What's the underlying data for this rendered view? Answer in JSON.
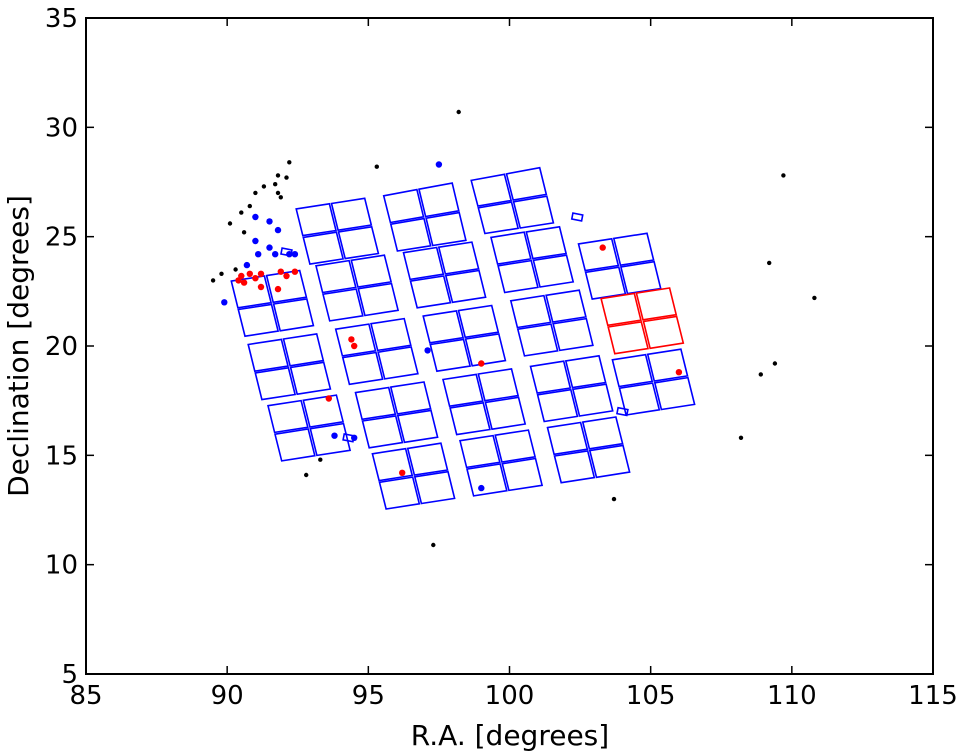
{
  "chart_data": {
    "type": "scatter",
    "title": "",
    "xlabel": "R.A. [degrees]",
    "ylabel": "Declination [degrees]",
    "xlim": [
      85,
      115
    ],
    "ylim": [
      5,
      35
    ],
    "xticks": [
      "85",
      "90",
      "95",
      "100",
      "105",
      "110",
      "115"
    ],
    "yticks": [
      "5",
      "10",
      "15",
      "20",
      "25",
      "30",
      "35"
    ],
    "grid": false,
    "legend": "none",
    "colors": {
      "blue": "#0000ff",
      "red": "#ff0000",
      "black": "#000000"
    },
    "fields": [
      {
        "color": "blue",
        "corners": [
          [
            92.4,
            26.3
          ],
          [
            94.9,
            26.8
          ],
          [
            95.4,
            24.2
          ],
          [
            92.9,
            23.7
          ]
        ]
      },
      {
        "color": "blue",
        "corners": [
          [
            95.5,
            26.9
          ],
          [
            98.0,
            27.5
          ],
          [
            98.5,
            24.8
          ],
          [
            96.0,
            24.3
          ]
        ]
      },
      {
        "color": "blue",
        "corners": [
          [
            98.6,
            27.6
          ],
          [
            101.1,
            28.2
          ],
          [
            101.6,
            25.6
          ],
          [
            99.1,
            25.1
          ]
        ]
      },
      {
        "color": "blue",
        "corners": [
          [
            90.1,
            23.0
          ],
          [
            92.6,
            23.5
          ],
          [
            93.1,
            20.9
          ],
          [
            90.6,
            20.4
          ]
        ]
      },
      {
        "color": "blue",
        "corners": [
          [
            93.1,
            23.7
          ],
          [
            95.6,
            24.2
          ],
          [
            96.1,
            21.6
          ],
          [
            93.6,
            21.1
          ]
        ]
      },
      {
        "color": "blue",
        "corners": [
          [
            96.2,
            24.3
          ],
          [
            98.7,
            24.8
          ],
          [
            99.2,
            22.2
          ],
          [
            96.7,
            21.7
          ]
        ]
      },
      {
        "color": "blue",
        "corners": [
          [
            99.3,
            25.0
          ],
          [
            101.8,
            25.5
          ],
          [
            102.3,
            22.9
          ],
          [
            99.8,
            22.4
          ]
        ]
      },
      {
        "color": "blue",
        "corners": [
          [
            102.4,
            24.7
          ],
          [
            104.9,
            25.2
          ],
          [
            105.4,
            22.6
          ],
          [
            102.9,
            22.1
          ]
        ]
      },
      {
        "color": "red",
        "corners": [
          [
            103.2,
            22.2
          ],
          [
            105.7,
            22.7
          ],
          [
            106.2,
            20.1
          ],
          [
            103.7,
            19.6
          ]
        ]
      },
      {
        "color": "blue",
        "corners": [
          [
            90.7,
            20.1
          ],
          [
            93.2,
            20.6
          ],
          [
            93.7,
            18.0
          ],
          [
            91.2,
            17.5
          ]
        ]
      },
      {
        "color": "blue",
        "corners": [
          [
            93.8,
            20.8
          ],
          [
            96.3,
            21.3
          ],
          [
            96.8,
            18.7
          ],
          [
            94.3,
            18.2
          ]
        ]
      },
      {
        "color": "blue",
        "corners": [
          [
            96.9,
            21.4
          ],
          [
            99.4,
            21.9
          ],
          [
            99.9,
            19.3
          ],
          [
            97.4,
            18.8
          ]
        ]
      },
      {
        "color": "blue",
        "corners": [
          [
            100.0,
            22.1
          ],
          [
            102.5,
            22.6
          ],
          [
            103.0,
            20.0
          ],
          [
            100.5,
            19.5
          ]
        ]
      },
      {
        "color": "blue",
        "corners": [
          [
            103.6,
            19.4
          ],
          [
            106.1,
            19.9
          ],
          [
            106.6,
            17.3
          ],
          [
            104.1,
            16.8
          ]
        ]
      },
      {
        "color": "blue",
        "corners": [
          [
            91.4,
            17.3
          ],
          [
            93.9,
            17.8
          ],
          [
            94.4,
            15.2
          ],
          [
            91.9,
            14.7
          ]
        ]
      },
      {
        "color": "blue",
        "corners": [
          [
            94.5,
            17.9
          ],
          [
            97.0,
            18.4
          ],
          [
            97.5,
            15.8
          ],
          [
            95.0,
            15.3
          ]
        ]
      },
      {
        "color": "blue",
        "corners": [
          [
            97.6,
            18.5
          ],
          [
            100.1,
            19.0
          ],
          [
            100.6,
            16.4
          ],
          [
            98.1,
            15.9
          ]
        ]
      },
      {
        "color": "blue",
        "corners": [
          [
            100.7,
            19.1
          ],
          [
            103.2,
            19.6
          ],
          [
            103.7,
            17.0
          ],
          [
            101.2,
            16.5
          ]
        ]
      },
      {
        "color": "blue",
        "corners": [
          [
            95.1,
            15.1
          ],
          [
            97.6,
            15.6
          ],
          [
            98.1,
            13.0
          ],
          [
            95.6,
            12.5
          ]
        ]
      },
      {
        "color": "blue",
        "corners": [
          [
            98.2,
            15.7
          ],
          [
            100.7,
            16.2
          ],
          [
            101.2,
            13.6
          ],
          [
            98.7,
            13.1
          ]
        ]
      },
      {
        "color": "blue",
        "corners": [
          [
            101.3,
            16.3
          ],
          [
            103.8,
            16.8
          ],
          [
            104.3,
            14.2
          ],
          [
            101.8,
            13.7
          ]
        ]
      }
    ],
    "small_boxes": [
      {
        "color": "blue",
        "x": 102.4,
        "y": 25.9
      },
      {
        "color": "blue",
        "x": 92.1,
        "y": 24.3
      },
      {
        "color": "blue",
        "x": 104.0,
        "y": 17.0
      },
      {
        "color": "blue",
        "x": 94.3,
        "y": 15.8
      }
    ],
    "series": [
      {
        "color": "black",
        "points": [
          [
            92.2,
            28.4
          ],
          [
            91.8,
            27.8
          ],
          [
            92.1,
            27.7
          ],
          [
            91.7,
            27.4
          ],
          [
            91.3,
            27.3
          ],
          [
            91.0,
            27.0
          ],
          [
            91.8,
            27.0
          ],
          [
            91.9,
            26.8
          ],
          [
            90.8,
            26.4
          ],
          [
            90.5,
            26.1
          ],
          [
            91.0,
            25.9
          ],
          [
            90.1,
            25.6
          ],
          [
            90.6,
            25.2
          ],
          [
            90.3,
            23.5
          ],
          [
            89.8,
            23.3
          ],
          [
            89.5,
            23.0
          ],
          [
            95.3,
            28.2
          ],
          [
            98.2,
            30.7
          ],
          [
            109.7,
            27.8
          ],
          [
            109.2,
            23.8
          ],
          [
            110.8,
            22.2
          ],
          [
            109.4,
            19.2
          ],
          [
            108.9,
            18.7
          ],
          [
            108.2,
            15.8
          ],
          [
            103.7,
            13.0
          ],
          [
            97.3,
            10.9
          ],
          [
            93.3,
            14.8
          ],
          [
            92.8,
            14.1
          ]
        ]
      },
      {
        "color": "blue",
        "points": [
          [
            91.0,
            25.9
          ],
          [
            91.5,
            25.7
          ],
          [
            91.8,
            25.3
          ],
          [
            91.0,
            24.8
          ],
          [
            91.5,
            24.5
          ],
          [
            91.1,
            24.2
          ],
          [
            91.7,
            24.2
          ],
          [
            92.2,
            24.2
          ],
          [
            92.4,
            24.2
          ],
          [
            90.7,
            23.7
          ],
          [
            89.9,
            22.0
          ],
          [
            97.5,
            28.3
          ],
          [
            93.8,
            15.9
          ],
          [
            94.5,
            15.8
          ],
          [
            97.1,
            19.8
          ],
          [
            99.0,
            13.5
          ]
        ]
      },
      {
        "color": "red",
        "points": [
          [
            90.4,
            23.0
          ],
          [
            90.5,
            23.2
          ],
          [
            90.8,
            23.3
          ],
          [
            91.0,
            23.1
          ],
          [
            91.2,
            23.3
          ],
          [
            90.6,
            22.9
          ],
          [
            91.2,
            22.7
          ],
          [
            91.9,
            23.4
          ],
          [
            92.4,
            23.4
          ],
          [
            92.1,
            23.2
          ],
          [
            91.8,
            22.6
          ],
          [
            94.4,
            20.3
          ],
          [
            94.5,
            20.0
          ],
          [
            93.6,
            17.6
          ],
          [
            99.0,
            19.2
          ],
          [
            103.3,
            24.5
          ],
          [
            106.0,
            18.8
          ],
          [
            96.2,
            14.2
          ]
        ]
      }
    ]
  }
}
